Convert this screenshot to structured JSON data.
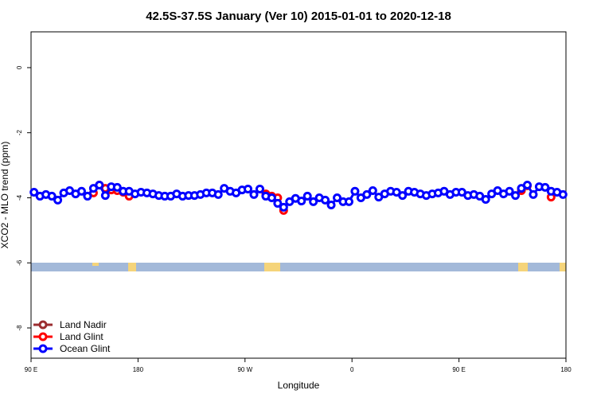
{
  "chart_data": {
    "type": "line",
    "title": "42.5S-37.5S January (Ver 10)   2015-01-01 to 2020-12-18",
    "x_label": "Longitude",
    "y_label": "XCO2 - MLO trend (ppm)",
    "xlim": [
      90,
      540
    ],
    "xticks": [
      {
        "value": 90,
        "label": "90 E"
      },
      180,
      {
        "value": 270,
        "label": "90 W"
      },
      {
        "value": 360,
        "label": "0"
      },
      {
        "value": 450,
        "label": "90 E"
      },
      {
        "value": 540,
        "label": "180"
      }
    ],
    "ylim": [
      -8.93,
      1.1
    ],
    "yticks": [
      0,
      -2,
      -4,
      -6,
      -8
    ],
    "legend": "bottom-left",
    "series": [
      {
        "name": "Land Nadir",
        "color": "#9b2d30",
        "x": [],
        "values": []
      },
      {
        "name": "Land Glint",
        "color": "#ff0000",
        "x": [
          142.5,
          147.5,
          152.5,
          157.5,
          162.5,
          167.5,
          172.5,
          287.5,
          292.5,
          297.5,
          302.5,
          502.5,
          507.5,
          527.5
        ],
        "values": [
          -3.85,
          -3.61,
          -3.71,
          -3.76,
          -3.78,
          -3.83,
          -3.95,
          -3.88,
          -3.95,
          -4.0,
          -4.39,
          -3.78,
          -3.63,
          -3.98
        ]
      },
      {
        "name": "Ocean Glint",
        "color": "#0000ff",
        "x": [
          92.5,
          97.5,
          102.5,
          107.5,
          112.5,
          117.5,
          122.5,
          127.5,
          132.5,
          137.5,
          142.5,
          147.5,
          152.5,
          157.5,
          162.5,
          167.5,
          172.5,
          177.5,
          182.5,
          187.5,
          192.5,
          197.5,
          202.5,
          207.5,
          212.5,
          217.5,
          222.5,
          227.5,
          232.5,
          237.5,
          242.5,
          247.5,
          252.5,
          257.5,
          262.5,
          267.5,
          272.5,
          277.5,
          282.5,
          287.5,
          292.5,
          297.5,
          302.5,
          307.5,
          312.5,
          317.5,
          322.5,
          327.5,
          332.5,
          337.5,
          342.5,
          347.5,
          352.5,
          357.5,
          362.5,
          367.5,
          372.5,
          377.5,
          382.5,
          387.5,
          392.5,
          397.5,
          402.5,
          407.5,
          412.5,
          417.5,
          422.5,
          427.5,
          432.5,
          437.5,
          442.5,
          447.5,
          452.5,
          457.5,
          462.5,
          467.5,
          472.5,
          477.5,
          482.5,
          487.5,
          492.5,
          497.5,
          502.5,
          507.5,
          512.5,
          517.5,
          522.5,
          527.5,
          532.5,
          537.5
        ],
        "values": [
          -3.83,
          -3.95,
          -3.9,
          -3.95,
          -4.07,
          -3.85,
          -3.78,
          -3.88,
          -3.8,
          -3.95,
          -3.71,
          -3.61,
          -3.93,
          -3.66,
          -3.68,
          -3.8,
          -3.8,
          -3.88,
          -3.83,
          -3.85,
          -3.88,
          -3.93,
          -3.95,
          -3.95,
          -3.88,
          -3.95,
          -3.93,
          -3.93,
          -3.9,
          -3.85,
          -3.85,
          -3.9,
          -3.71,
          -3.8,
          -3.85,
          -3.76,
          -3.73,
          -3.9,
          -3.73,
          -3.95,
          -4.0,
          -4.17,
          -4.29,
          -4.12,
          -4.02,
          -4.1,
          -3.95,
          -4.12,
          -4.0,
          -4.07,
          -4.22,
          -4.0,
          -4.12,
          -4.12,
          -3.8,
          -4.0,
          -3.9,
          -3.78,
          -3.98,
          -3.88,
          -3.8,
          -3.83,
          -3.93,
          -3.8,
          -3.83,
          -3.88,
          -3.93,
          -3.88,
          -3.85,
          -3.8,
          -3.9,
          -3.83,
          -3.83,
          -3.93,
          -3.9,
          -3.95,
          -4.05,
          -3.88,
          -3.78,
          -3.88,
          -3.8,
          -3.93,
          -3.71,
          -3.61,
          -3.9,
          -3.66,
          -3.68,
          -3.8,
          -3.83,
          -3.9
        ]
      }
    ]
  }
}
